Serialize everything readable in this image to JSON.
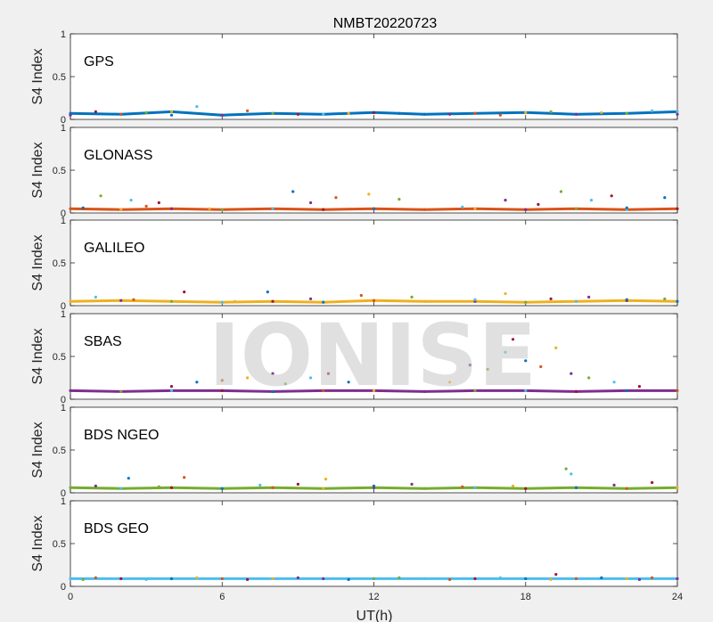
{
  "figure": {
    "title": "NMBT20220723",
    "xlabel": "UT(h)",
    "watermark": "IONISE"
  },
  "colors": {
    "background": "#f0f0f0",
    "axes": "#ffffff",
    "series": [
      "#0072bd",
      "#d95319",
      "#edb120",
      "#7e2f8e",
      "#77ac30",
      "#4dbeee",
      "#a2142f"
    ]
  },
  "chart_data": [
    {
      "type": "scatter",
      "name": "GPS",
      "ylabel": "S4 Index",
      "xlim": [
        0,
        24
      ],
      "ylim": [
        0,
        1
      ],
      "xticks": [
        0,
        6,
        12,
        18,
        24
      ],
      "yticks": [
        0,
        0.5,
        1
      ],
      "ytick_labels": [
        "0",
        "0.5",
        "1"
      ],
      "series": [
        {
          "x": [
            0,
            2,
            4,
            6,
            8,
            10,
            12,
            14,
            16,
            18,
            20,
            22,
            24
          ],
          "y": [
            0.07,
            0.06,
            0.09,
            0.05,
            0.07,
            0.06,
            0.08,
            0.06,
            0.07,
            0.08,
            0.06,
            0.07,
            0.09
          ]
        },
        {
          "x": [
            0,
            3,
            5,
            9,
            13,
            17,
            21,
            24
          ],
          "y": [
            0.05,
            0.08,
            0.15,
            0.06,
            0.07,
            0.05,
            0.08,
            0.06
          ]
        },
        {
          "x": [
            1,
            4,
            7,
            11,
            15,
            19,
            23
          ],
          "y": [
            0.09,
            0.05,
            0.1,
            0.07,
            0.06,
            0.09,
            0.1
          ]
        }
      ]
    },
    {
      "type": "scatter",
      "name": "GLONASS",
      "ylabel": "S4 Index",
      "xlim": [
        0,
        24
      ],
      "ylim": [
        0,
        1
      ],
      "xticks": [
        0,
        6,
        12,
        18,
        24
      ],
      "yticks": [
        0,
        0.5,
        1
      ],
      "ytick_labels": [
        "0",
        "0.5",
        "1"
      ],
      "series": [
        {
          "x": [
            0,
            2,
            4,
            6,
            8,
            10,
            12,
            14,
            16,
            18,
            20,
            22,
            24
          ],
          "y": [
            0.05,
            0.04,
            0.05,
            0.04,
            0.05,
            0.04,
            0.05,
            0.04,
            0.05,
            0.04,
            0.05,
            0.04,
            0.05
          ]
        },
        {
          "x": [
            1.2,
            2.4,
            3.5,
            8.8,
            10.5,
            11.8,
            17.2,
            19.4,
            20.6,
            21.4,
            23.5
          ],
          "y": [
            0.2,
            0.15,
            0.12,
            0.25,
            0.18,
            0.22,
            0.15,
            0.25,
            0.15,
            0.2,
            0.18
          ]
        },
        {
          "x": [
            0.5,
            3,
            5.5,
            9.5,
            13,
            15.5,
            18.5,
            22
          ],
          "y": [
            0.06,
            0.08,
            0.05,
            0.12,
            0.16,
            0.07,
            0.1,
            0.06
          ]
        }
      ]
    },
    {
      "type": "scatter",
      "name": "GALILEO",
      "ylabel": "S4 Index",
      "xlim": [
        0,
        24
      ],
      "ylim": [
        0,
        1
      ],
      "xticks": [
        0,
        6,
        12,
        18,
        24
      ],
      "yticks": [
        0,
        0.5,
        1
      ],
      "ytick_labels": [
        "0",
        "0.5",
        "1"
      ],
      "series": [
        {
          "x": [
            0,
            2,
            4,
            6,
            8,
            10,
            12,
            14,
            16,
            18,
            20,
            22,
            24
          ],
          "y": [
            0.05,
            0.06,
            0.05,
            0.04,
            0.05,
            0.04,
            0.06,
            0.05,
            0.05,
            0.04,
            0.05,
            0.06,
            0.05
          ]
        },
        {
          "x": [
            1,
            4.5,
            7.8,
            11.5,
            17.2,
            20.5,
            23.5
          ],
          "y": [
            0.1,
            0.16,
            0.16,
            0.12,
            0.14,
            0.1,
            0.08
          ]
        },
        {
          "x": [
            2.5,
            6.5,
            9.5,
            13.5,
            16,
            19,
            22
          ],
          "y": [
            0.07,
            0.05,
            0.08,
            0.1,
            0.07,
            0.08,
            0.07
          ]
        }
      ]
    },
    {
      "type": "scatter",
      "name": "SBAS",
      "ylabel": "S4 Index",
      "xlim": [
        0,
        24
      ],
      "ylim": [
        0,
        1
      ],
      "xticks": [
        0,
        6,
        12,
        18,
        24
      ],
      "yticks": [
        0,
        0.5,
        1
      ],
      "ytick_labels": [
        "0",
        "0.5",
        "1"
      ],
      "series": [
        {
          "x": [
            0,
            2,
            4,
            6,
            8,
            10,
            12,
            14,
            16,
            18,
            20,
            22,
            24
          ],
          "y": [
            0.1,
            0.09,
            0.1,
            0.1,
            0.09,
            0.1,
            0.1,
            0.09,
            0.1,
            0.1,
            0.09,
            0.1,
            0.1
          ]
        },
        {
          "x": [
            4,
            5,
            6,
            7,
            8,
            8.5,
            9.5,
            10.2,
            11
          ],
          "y": [
            0.15,
            0.2,
            0.22,
            0.25,
            0.3,
            0.18,
            0.25,
            0.3,
            0.2
          ]
        },
        {
          "x": [
            15,
            15.8,
            16.5,
            17.2,
            17.5,
            18,
            18.6,
            19.2,
            19.8,
            20.5,
            21.5,
            22.5
          ],
          "y": [
            0.2,
            0.4,
            0.35,
            0.55,
            0.7,
            0.45,
            0.38,
            0.6,
            0.3,
            0.25,
            0.2,
            0.15
          ]
        }
      ]
    },
    {
      "type": "scatter",
      "name": "BDS NGEO",
      "ylabel": "S4 Index",
      "xlim": [
        0,
        24
      ],
      "ylim": [
        0,
        1
      ],
      "xticks": [
        0,
        6,
        12,
        18,
        24
      ],
      "yticks": [
        0,
        0.5,
        1
      ],
      "ytick_labels": [
        "0",
        "0.5",
        "1"
      ],
      "series": [
        {
          "x": [
            0,
            2,
            4,
            6,
            8,
            10,
            12,
            14,
            16,
            18,
            20,
            22,
            24
          ],
          "y": [
            0.06,
            0.05,
            0.06,
            0.05,
            0.06,
            0.05,
            0.06,
            0.05,
            0.06,
            0.05,
            0.06,
            0.05,
            0.06
          ]
        },
        {
          "x": [
            2.3,
            4.5,
            10.1,
            13.5,
            19.6,
            19.8,
            23
          ],
          "y": [
            0.17,
            0.18,
            0.16,
            0.1,
            0.28,
            0.22,
            0.12
          ]
        },
        {
          "x": [
            1,
            3.5,
            7.5,
            9,
            12,
            15.5,
            17.5,
            21.5
          ],
          "y": [
            0.08,
            0.07,
            0.09,
            0.1,
            0.08,
            0.07,
            0.08,
            0.09
          ]
        }
      ]
    },
    {
      "type": "scatter",
      "name": "BDS GEO",
      "ylabel": "S4 Index",
      "xlim": [
        0,
        24
      ],
      "ylim": [
        0,
        1
      ],
      "xticks": [
        0,
        6,
        12,
        18,
        24
      ],
      "yticks": [
        0,
        0.5,
        1
      ],
      "ytick_labels": [
        "0",
        "0.5",
        "1"
      ],
      "series": [
        {
          "x": [
            0,
            2,
            4,
            6,
            8,
            10,
            12,
            14,
            16,
            18,
            20,
            22,
            24
          ],
          "y": [
            0.09,
            0.09,
            0.09,
            0.09,
            0.09,
            0.09,
            0.09,
            0.09,
            0.09,
            0.09,
            0.09,
            0.09,
            0.09
          ]
        },
        {
          "x": [
            1,
            5,
            9,
            13,
            17,
            19.2,
            21,
            23
          ],
          "y": [
            0.1,
            0.1,
            0.1,
            0.1,
            0.1,
            0.14,
            0.1,
            0.1
          ]
        },
        {
          "x": [
            0.5,
            3,
            7,
            11,
            15,
            19,
            22.5
          ],
          "y": [
            0.08,
            0.08,
            0.08,
            0.08,
            0.08,
            0.08,
            0.08
          ]
        }
      ]
    }
  ]
}
